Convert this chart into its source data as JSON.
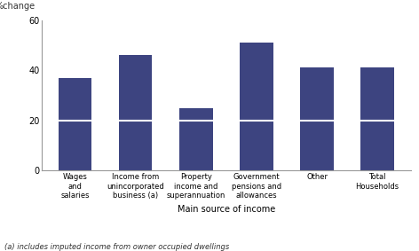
{
  "categories": [
    "Wages\nand\nsalaries",
    "Income from\nunincorporated\nbusiness (a)",
    "Property\nincome and\nsuperannuation",
    "Government\npensions and\nallowances",
    "Other",
    "Total\nHouseholds"
  ],
  "bottom_values": [
    20,
    20,
    20,
    20,
    20,
    20
  ],
  "top_values": [
    17,
    26,
    5,
    31,
    21,
    21
  ],
  "bar_color": "#3d4480",
  "divider_color": "#ffffff",
  "background_color": "#ffffff",
  "ylabel_text": "%change",
  "xlabel": "Main source of income",
  "ylim": [
    0,
    60
  ],
  "yticks": [
    0,
    20,
    40,
    60
  ],
  "footnote": "(a) includes imputed income from owner occupied dwellings",
  "bar_width": 0.55
}
